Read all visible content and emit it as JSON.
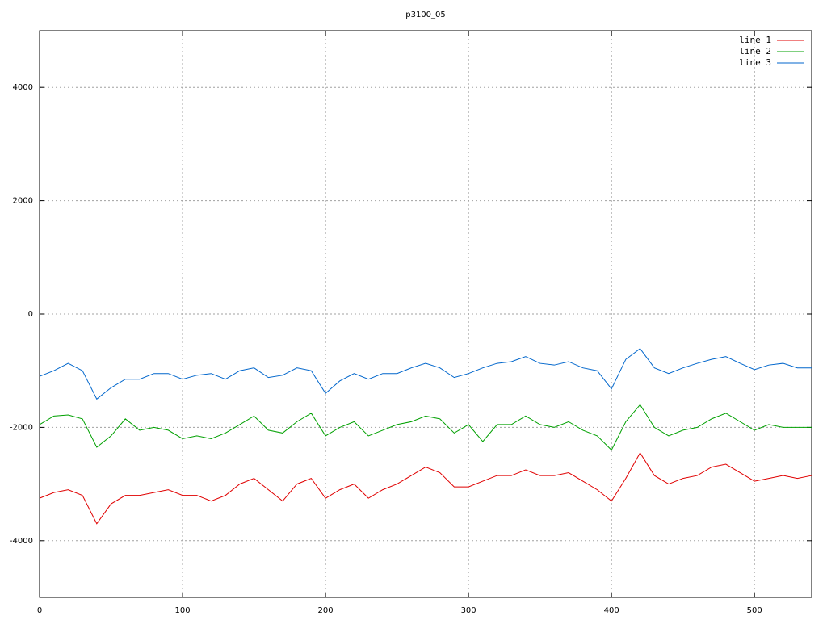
{
  "chart_data": {
    "type": "line",
    "title": "p3100_05",
    "x": [
      0,
      10,
      20,
      30,
      40,
      50,
      60,
      70,
      80,
      90,
      100,
      110,
      120,
      130,
      140,
      150,
      160,
      170,
      180,
      190,
      200,
      210,
      220,
      230,
      240,
      250,
      260,
      270,
      280,
      290,
      300,
      310,
      320,
      330,
      340,
      350,
      360,
      370,
      380,
      390,
      400,
      410,
      420,
      430,
      440,
      450,
      460,
      470,
      480,
      490,
      500,
      510,
      520,
      530,
      540
    ],
    "series": [
      {
        "name": "line 1",
        "color": "#e00000",
        "values": [
          -3250,
          -3150,
          -3100,
          -3200,
          -3700,
          -3350,
          -3200,
          -3200,
          -3150,
          -3100,
          -3200,
          -3200,
          -3300,
          -3200,
          -3000,
          -2900,
          -3100,
          -3300,
          -3000,
          -2900,
          -3250,
          -3100,
          -3000,
          -3250,
          -3100,
          -3000,
          -2850,
          -2700,
          -2800,
          -3050,
          -3050,
          -2950,
          -2850,
          -2850,
          -2750,
          -2850,
          -2850,
          -2800,
          -2950,
          -3100,
          -3300,
          -2900,
          -2450,
          -2850,
          -3000,
          -2900,
          -2850,
          -2700,
          -2650,
          -2800,
          -2950,
          -2900,
          -2850,
          -2900,
          -2850
        ]
      },
      {
        "name": "line 2",
        "color": "#00a000",
        "values": [
          -1950,
          -1800,
          -1780,
          -1850,
          -2350,
          -2150,
          -1850,
          -2050,
          -2000,
          -2050,
          -2200,
          -2150,
          -2200,
          -2100,
          -1950,
          -1800,
          -2050,
          -2100,
          -1900,
          -1750,
          -2150,
          -2000,
          -1900,
          -2150,
          -2050,
          -1950,
          -1900,
          -1800,
          -1850,
          -2100,
          -1950,
          -2250,
          -1950,
          -1950,
          -1800,
          -1950,
          -2000,
          -1900,
          -2050,
          -2150,
          -2400,
          -1900,
          -1600,
          -2000,
          -2150,
          -2050,
          -2000,
          -1850,
          -1750,
          -1900,
          -2050,
          -1950,
          -2000,
          -2000,
          -2000
        ]
      },
      {
        "name": "line 3",
        "color": "#0066cc",
        "values": [
          -1100,
          -1000,
          -870,
          -1000,
          -1500,
          -1300,
          -1150,
          -1150,
          -1050,
          -1050,
          -1150,
          -1080,
          -1050,
          -1150,
          -1000,
          -950,
          -1120,
          -1080,
          -950,
          -1000,
          -1400,
          -1180,
          -1050,
          -1150,
          -1050,
          -1050,
          -950,
          -870,
          -950,
          -1120,
          -1050,
          -950,
          -870,
          -840,
          -750,
          -870,
          -900,
          -840,
          -950,
          -1000,
          -1320,
          -800,
          -610,
          -950,
          -1050,
          -950,
          -870,
          -800,
          -750,
          -870,
          -980,
          -900,
          -870,
          -950,
          -950
        ]
      }
    ],
    "xlim": [
      0,
      540
    ],
    "xticks": [
      0,
      100,
      200,
      300,
      400,
      500
    ],
    "ylim": [
      -5000,
      5000
    ],
    "yticks": [
      -4000,
      -2000,
      0,
      2000,
      4000
    ],
    "grid": true,
    "legend": "top-right"
  }
}
